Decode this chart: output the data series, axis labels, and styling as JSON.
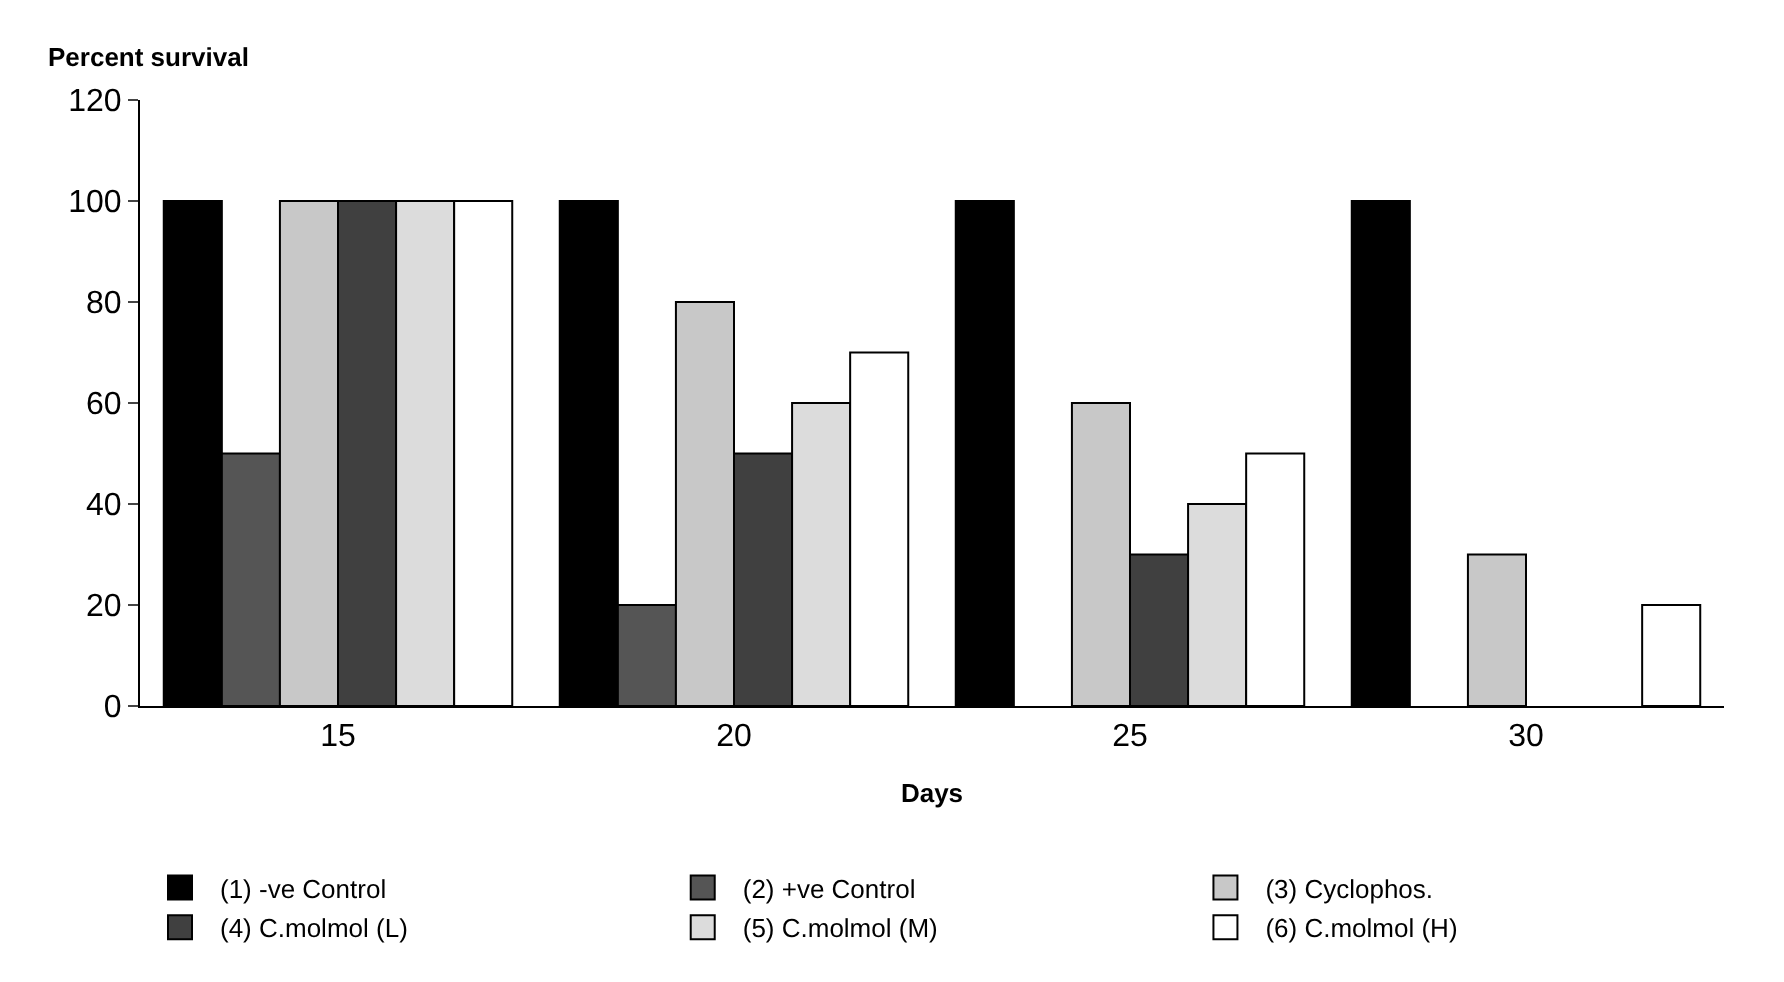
{
  "chart_data": {
    "type": "bar",
    "xlabel": "Days",
    "ylabel": "Percent survival",
    "categories": [
      "15",
      "20",
      "25",
      "30"
    ],
    "series": [
      {
        "name": "(1) -ve Control",
        "color": "#000000",
        "values": [
          100,
          100,
          100,
          100
        ]
      },
      {
        "name": "(2) +ve Control",
        "color": "#555555",
        "values": [
          50,
          20,
          null,
          null
        ]
      },
      {
        "name": "(3) Cyclophos.",
        "color": "#c8c8c8",
        "values": [
          100,
          80,
          60,
          30
        ]
      },
      {
        "name": "(4) C.molmol (L)",
        "color": "#404040",
        "values": [
          100,
          50,
          30,
          null
        ]
      },
      {
        "name": "(5) C.molmol (M)",
        "color": "#dcdcdc",
        "values": [
          100,
          60,
          40,
          null
        ]
      },
      {
        "name": "(6) C.molmol (H)",
        "color": "#ffffff",
        "values": [
          100,
          70,
          50,
          20
        ]
      }
    ],
    "ylim": [
      0,
      120
    ],
    "yticks": [
      0,
      20,
      40,
      60,
      80,
      100,
      120
    ],
    "legend": "bottom"
  }
}
